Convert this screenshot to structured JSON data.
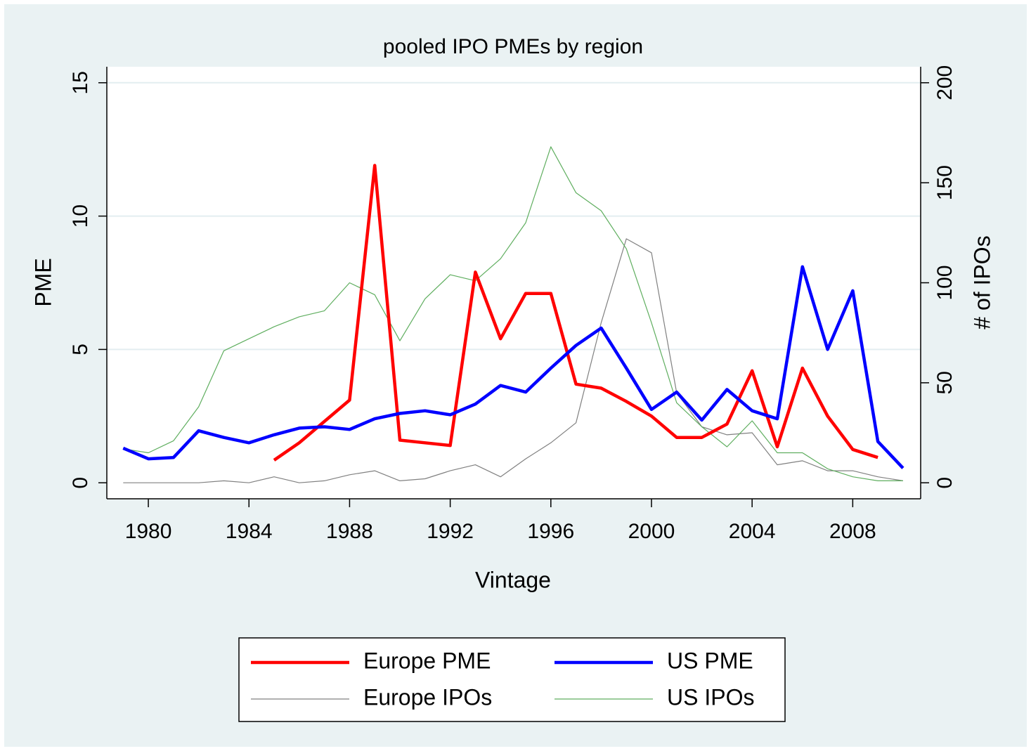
{
  "chart_data": {
    "type": "line",
    "title": "pooled IPO PMEs by region",
    "xlabel": "Vintage",
    "ylabel": "PME",
    "y2label": "# of IPOs",
    "x": [
      1979,
      1980,
      1981,
      1982,
      1983,
      1984,
      1985,
      1986,
      1987,
      1988,
      1989,
      1990,
      1991,
      1992,
      1993,
      1994,
      1995,
      1996,
      1997,
      1998,
      1999,
      2000,
      2001,
      2002,
      2003,
      2004,
      2005,
      2006,
      2007,
      2008,
      2009,
      2010
    ],
    "series": [
      {
        "name": "Europe PME",
        "color": "#ff0000",
        "width": 4.5,
        "values": [
          null,
          null,
          null,
          null,
          null,
          null,
          0.85,
          1.5,
          2.3,
          3.1,
          11.9,
          1.6,
          1.5,
          1.4,
          7.9,
          5.4,
          7.1,
          7.1,
          3.7,
          3.55,
          3.05,
          2.5,
          1.7,
          1.7,
          2.2,
          4.2,
          1.35,
          4.3,
          2.5,
          1.25,
          0.95,
          null
        ]
      },
      {
        "name": "US PME",
        "color": "#0000ff",
        "width": 4.5,
        "values": [
          1.3,
          0.9,
          0.95,
          1.95,
          1.7,
          1.5,
          1.8,
          2.05,
          2.1,
          2.0,
          2.4,
          2.6,
          2.7,
          2.55,
          2.95,
          3.65,
          3.4,
          4.3,
          5.15,
          5.8,
          4.3,
          2.75,
          3.4,
          2.35,
          3.5,
          2.7,
          2.4,
          8.1,
          5.0,
          7.2,
          1.55,
          0.55
        ]
      },
      {
        "name": "Europe IPOs",
        "color": "#808080",
        "width": 1.2,
        "axis": "y2",
        "values": [
          0,
          0,
          0,
          0,
          1,
          0,
          3,
          0,
          1,
          4,
          6,
          1,
          2,
          6,
          9,
          3,
          12,
          20,
          30,
          80,
          122,
          115,
          45,
          28,
          24,
          25,
          9,
          11,
          6,
          6,
          3,
          1
        ]
      },
      {
        "name": "US IPOs",
        "color": "#5fae5f",
        "width": 1.2,
        "axis": "y2",
        "values": [
          17,
          15,
          21,
          38,
          66,
          72,
          78,
          83,
          86,
          100,
          94,
          71,
          92,
          104,
          101,
          112,
          130,
          168,
          145,
          136,
          117,
          80,
          40,
          28,
          18,
          31,
          15,
          15,
          7,
          3,
          1,
          1
        ]
      }
    ],
    "xlim": [
      1978.35,
      2010.7
    ],
    "xticks": [
      1980,
      1984,
      1988,
      1992,
      1996,
      2000,
      2004,
      2008
    ],
    "ylim": [
      -0.6,
      15.6
    ],
    "yticks": [
      0,
      5,
      10,
      15
    ],
    "y2lim": [
      -8,
      208
    ],
    "y2ticks": [
      0,
      50,
      100,
      150,
      200
    ],
    "grid": true,
    "legend": "bottom"
  }
}
